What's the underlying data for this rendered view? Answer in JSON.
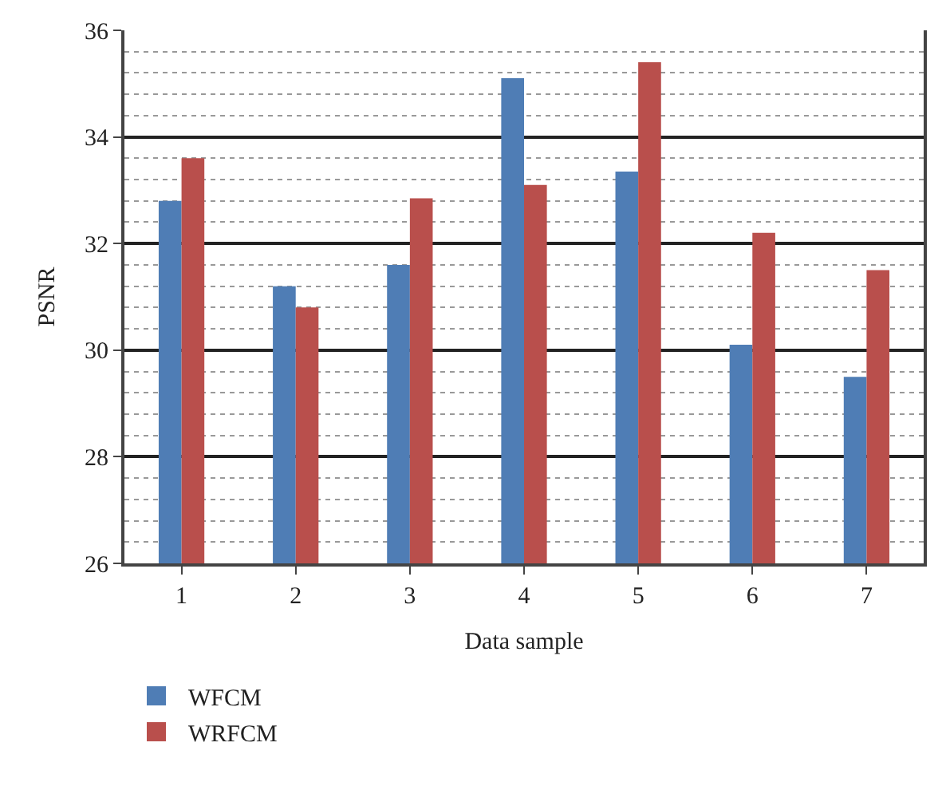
{
  "chart_data": {
    "type": "bar",
    "xlabel": "Data sample",
    "ylabel": "PSNR",
    "categories": [
      "1",
      "2",
      "3",
      "4",
      "5",
      "6",
      "7"
    ],
    "series": [
      {
        "name": "WFCM",
        "color": "#4f7db5",
        "values": [
          32.8,
          31.2,
          31.6,
          35.1,
          33.35,
          30.1,
          29.5
        ]
      },
      {
        "name": "WRFCM",
        "color": "#b94f4c",
        "values": [
          33.6,
          30.8,
          32.85,
          33.1,
          35.4,
          32.2,
          31.5
        ]
      }
    ],
    "ylim": [
      26,
      36
    ],
    "yticks": [
      26,
      28,
      30,
      32,
      34,
      36
    ],
    "grid": "y",
    "legend": "bottom left"
  }
}
